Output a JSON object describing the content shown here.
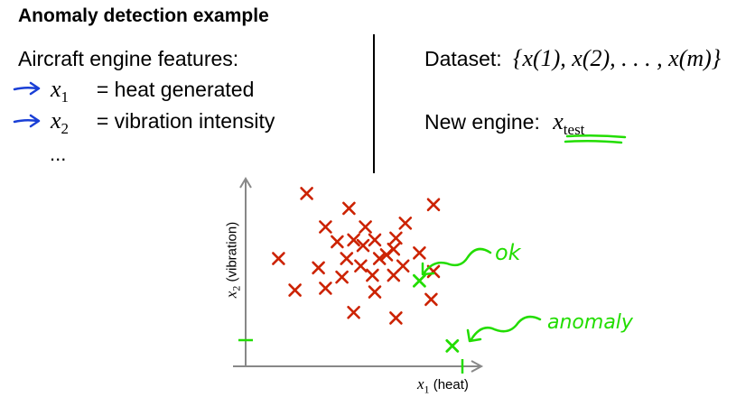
{
  "title": "Anomaly detection example",
  "features": {
    "heading": "Aircraft engine features:",
    "items": [
      {
        "symbol": "x",
        "sub": "1",
        "desc": "= heat generated"
      },
      {
        "symbol": "x",
        "sub": "2",
        "desc": "= vibration intensity"
      }
    ],
    "ellipsis": "..."
  },
  "dataset": {
    "label": "Dataset:",
    "formula": "{x(1), x(2), . . . , x(m)}"
  },
  "new_engine": {
    "label": "New engine:",
    "symbol": "x",
    "sub": "test"
  },
  "annotations": {
    "ok": "ok",
    "anomaly": "anomaly"
  },
  "colors": {
    "training_marker": "#cc2200",
    "handwriting": "#22dd00",
    "arrow": "#1a3fd6"
  },
  "chart_data": {
    "type": "scatter",
    "xlabel_symbol": "x",
    "xlabel_sub": "1",
    "xlabel_text": "(heat)",
    "ylabel_symbol": "x",
    "ylabel_sub": "2",
    "ylabel_text": "(vibration)",
    "xlim": [
      0,
      10
    ],
    "ylim": [
      0,
      10
    ],
    "series": [
      {
        "marker": "x",
        "color": "#cc2200",
        "points": [
          [
            2.6,
            9.3
          ],
          [
            4.4,
            8.5
          ],
          [
            8.0,
            8.7
          ],
          [
            3.4,
            7.5
          ],
          [
            5.1,
            7.5
          ],
          [
            6.8,
            7.7
          ],
          [
            3.9,
            6.7
          ],
          [
            4.6,
            6.8
          ],
          [
            5.5,
            6.8
          ],
          [
            6.4,
            6.9
          ],
          [
            5.0,
            6.5
          ],
          [
            6.3,
            6.3
          ],
          [
            1.4,
            5.8
          ],
          [
            4.3,
            5.8
          ],
          [
            5.7,
            5.8
          ],
          [
            6.0,
            6.0
          ],
          [
            7.4,
            6.1
          ],
          [
            3.1,
            5.3
          ],
          [
            4.9,
            5.4
          ],
          [
            6.7,
            5.4
          ],
          [
            4.1,
            4.8
          ],
          [
            5.4,
            4.9
          ],
          [
            6.3,
            4.9
          ],
          [
            8.0,
            5.1
          ],
          [
            2.1,
            4.1
          ],
          [
            3.4,
            4.2
          ],
          [
            5.5,
            4.0
          ],
          [
            7.9,
            3.6
          ],
          [
            4.6,
            2.9
          ],
          [
            6.4,
            2.6
          ]
        ]
      },
      {
        "marker": "x",
        "color": "#22dd00",
        "points": [
          [
            7.4,
            4.6
          ],
          [
            8.8,
            1.1
          ]
        ]
      }
    ]
  }
}
